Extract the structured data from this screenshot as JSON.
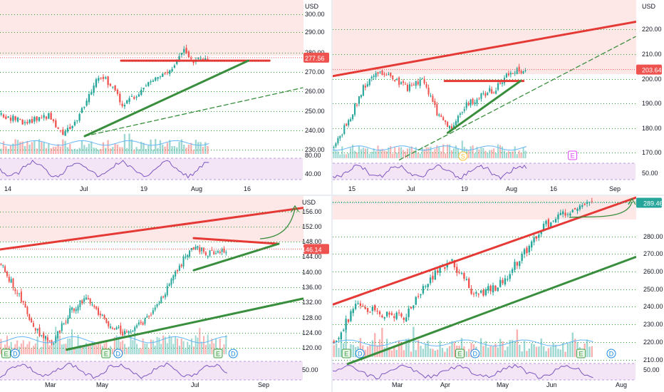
{
  "colors": {
    "up": "#26a69a",
    "down": "#ef5350",
    "resistance": "#e53935",
    "support": "#388e3c",
    "grid": "#21a121",
    "rsi_fill": "#f3e5f5",
    "rsi_line": "#7e57c2",
    "ma_line": "#64b5f6",
    "zone": "#fde7e7",
    "price_label": "#ef5350",
    "price_label_green": "#26a69a"
  },
  "panels": [
    {
      "id": "top-left",
      "currency": "USD",
      "price_label": "277.56",
      "price_label_color": "red",
      "y_ticks": [
        "300.00",
        "290.00",
        "280.00",
        "270.00",
        "260.00",
        "250.00",
        "240.00",
        "230.00"
      ],
      "rsi_ticks": [
        "80.00",
        "40.00"
      ],
      "x_ticks": [
        "14",
        "Jul",
        "19",
        "Aug",
        "16"
      ],
      "events": [],
      "chart_data": {
        "type": "candlestick",
        "ylim": [
          225,
          305
        ],
        "x_range": [
          "Jun 9",
          "Aug 25"
        ],
        "close_series": [
          {
            "label": "Jun 14",
            "value": 248
          },
          {
            "label": "Jun 17",
            "value": 246
          },
          {
            "label": "Jun 21",
            "value": 244
          },
          {
            "label": "Jun 25",
            "value": 246
          },
          {
            "label": "Jun 29",
            "value": 248
          },
          {
            "label": "Jul 1",
            "value": 238
          },
          {
            "label": "Jul 6",
            "value": 242
          },
          {
            "label": "Jul 9",
            "value": 254
          },
          {
            "label": "Jul 12",
            "value": 268
          },
          {
            "label": "Jul 15",
            "value": 264
          },
          {
            "label": "Jul 19",
            "value": 253
          },
          {
            "label": "Jul 22",
            "value": 258
          },
          {
            "label": "Jul 26",
            "value": 264
          },
          {
            "label": "Jul 29",
            "value": 267
          },
          {
            "label": "Aug 2",
            "value": 270
          },
          {
            "label": "Aug 4",
            "value": 282
          },
          {
            "label": "Aug 6",
            "value": 275
          },
          {
            "label": "Aug 9",
            "value": 277.56
          }
        ],
        "resistance_level": 276,
        "support_line": [
          [
            0.28,
            237
          ],
          [
            0.82,
            276
          ]
        ],
        "dashed_line": [
          [
            0.28,
            237
          ],
          [
            1.0,
            262
          ]
        ]
      }
    },
    {
      "id": "top-right",
      "currency": "USD",
      "price_label": "203.64",
      "price_label_color": "red",
      "y_ticks": [
        "220.00",
        "210.00",
        "200.00",
        "190.00",
        "180.00",
        "170.00"
      ],
      "rsi_ticks": [
        "50.00"
      ],
      "x_ticks": [
        "15",
        "Jul",
        "19",
        "Aug",
        "16",
        "Sep"
      ],
      "events": [
        {
          "label": "S",
          "kind": "split"
        },
        {
          "label": "E",
          "kind": "earnings"
        }
      ],
      "chart_data": {
        "type": "candlestick",
        "ylim": [
          165,
          228
        ],
        "x_range": [
          "Jun 10",
          "Sep 5"
        ],
        "close_series": [
          {
            "label": "Jun 15",
            "value": 172
          },
          {
            "label": "Jun 22",
            "value": 183
          },
          {
            "label": "Jun 29",
            "value": 196
          },
          {
            "label": "Jul 2",
            "value": 203
          },
          {
            "label": "Jul 6",
            "value": 200
          },
          {
            "label": "Jul 9",
            "value": 196
          },
          {
            "label": "Jul 13",
            "value": 200
          },
          {
            "label": "Jul 16",
            "value": 186
          },
          {
            "label": "Jul 19",
            "value": 180
          },
          {
            "label": "Jul 23",
            "value": 189
          },
          {
            "label": "Jul 27",
            "value": 193
          },
          {
            "label": "Aug 2",
            "value": 196
          },
          {
            "label": "Aug 6",
            "value": 203
          },
          {
            "label": "Aug 9",
            "value": 203.64
          }
        ],
        "resistance_level": 199,
        "rising_red_line": [
          [
            0,
            201
          ],
          [
            1,
            223
          ]
        ],
        "support_line": [
          [
            0.38,
            178
          ],
          [
            0.62,
            199
          ]
        ],
        "dashed_line": [
          [
            0.22,
            167
          ],
          [
            1,
            217
          ]
        ]
      }
    },
    {
      "id": "bottom-left",
      "currency": "USD",
      "price_label": "146.14",
      "price_label_color": "red",
      "y_ticks": [
        "156.00",
        "152.00",
        "148.00",
        "144.00",
        "140.00",
        "136.00",
        "132.00",
        "128.00",
        "124.00",
        "120.00"
      ],
      "rsi_ticks": [
        "50.00"
      ],
      "x_ticks": [
        "Mar",
        "May",
        "Jul",
        "Sep"
      ],
      "events": [
        {
          "label": "E",
          "kind": "earnings"
        },
        {
          "label": "D",
          "kind": "dividend"
        },
        {
          "label": "E",
          "kind": "earnings"
        },
        {
          "label": "D",
          "kind": "dividend"
        },
        {
          "label": "E",
          "kind": "earnings"
        },
        {
          "label": "D",
          "kind": "dividend"
        }
      ],
      "chart_data": {
        "type": "candlestick",
        "ylim": [
          117,
          160
        ],
        "x_range": [
          "Feb",
          "Sep"
        ],
        "close_series": [
          {
            "label": "Feb",
            "value": 142
          },
          {
            "label": "Feb 15",
            "value": 134
          },
          {
            "label": "Mar",
            "value": 125
          },
          {
            "label": "Mar 15",
            "value": 121
          },
          {
            "label": "Apr 1",
            "value": 130
          },
          {
            "label": "Apr 15",
            "value": 133
          },
          {
            "label": "May",
            "value": 127
          },
          {
            "label": "May 15",
            "value": 124
          },
          {
            "label": "Jun 1",
            "value": 126
          },
          {
            "label": "Jun 15",
            "value": 131
          },
          {
            "label": "Jul 1",
            "value": 139
          },
          {
            "label": "Jul 8",
            "value": 147
          },
          {
            "label": "Jul 15",
            "value": 145
          },
          {
            "label": "Jul 22",
            "value": 146.14
          }
        ],
        "resistance_line": [
          [
            0,
            146
          ],
          [
            1,
            157
          ]
        ],
        "triangle_top": [
          [
            0.64,
            149
          ],
          [
            0.92,
            147.5
          ]
        ],
        "triangle_bottom": [
          [
            0.64,
            140.5
          ],
          [
            0.92,
            147.5
          ]
        ],
        "support_line": [
          [
            0.22,
            119.5
          ],
          [
            1,
            133
          ]
        ]
      }
    },
    {
      "id": "bottom-right",
      "currency": "USD",
      "price_label": "289.46",
      "price_label_color": "green",
      "y_ticks": [
        "280.00",
        "270.00",
        "260.00",
        "250.00",
        "240.00",
        "230.00",
        "220.00",
        "210.00"
      ],
      "rsi_ticks": [
        "50.00"
      ],
      "x_ticks": [
        "Mar",
        "Apr",
        "May",
        "Jun",
        "Aug"
      ],
      "events": [
        {
          "label": "E",
          "kind": "earnings"
        },
        {
          "label": "D",
          "kind": "dividend"
        },
        {
          "label": "E",
          "kind": "earnings"
        },
        {
          "label": "D",
          "kind": "dividend"
        },
        {
          "label": "E",
          "kind": "earnings"
        },
        {
          "label": "D",
          "kind": "dividend"
        }
      ],
      "chart_data": {
        "type": "candlestick",
        "ylim": [
          205,
          300
        ],
        "x_range": [
          "Feb",
          "Aug"
        ],
        "close_series": [
          {
            "label": "Feb",
            "value": 219
          },
          {
            "label": "Feb 15",
            "value": 238
          },
          {
            "label": "Mar",
            "value": 233
          },
          {
            "label": "Mar 15",
            "value": 232
          },
          {
            "label": "Apr 1",
            "value": 250
          },
          {
            "label": "Apr 15",
            "value": 260
          },
          {
            "label": "May",
            "value": 243
          },
          {
            "label": "May 15",
            "value": 247
          },
          {
            "label": "Jun 1",
            "value": 262
          },
          {
            "label": "Jun 15",
            "value": 278
          },
          {
            "label": "Jul 1",
            "value": 285
          },
          {
            "label": "Jul 15",
            "value": 289.46
          }
        ],
        "resistance_line": [
          [
            0,
            238
          ],
          [
            1,
            292
          ]
        ],
        "support_line": [
          [
            0.05,
            208
          ],
          [
            1,
            262
          ]
        ]
      }
    }
  ]
}
